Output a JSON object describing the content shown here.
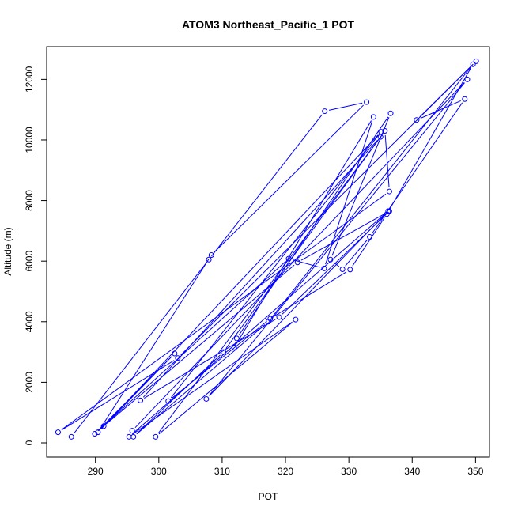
{
  "chart_data": {
    "type": "scatter",
    "title": "ATOM3 Northeast_Pacific_1 POT",
    "xlabel": "POT",
    "ylabel": "Altitude (m)",
    "xlim": [
      282.3,
      352.2
    ],
    "ylim": [
      -470,
      13080
    ],
    "x_ticks": [
      290,
      300,
      310,
      320,
      330,
      340,
      350
    ],
    "y_ticks": [
      0,
      2000,
      4000,
      6000,
      8000,
      10000,
      12000
    ],
    "x_tick_labels": [
      "290",
      "300",
      "310",
      "320",
      "330",
      "340",
      "350"
    ],
    "y_tick_labels": [
      "0",
      "2000",
      "4000",
      "6000",
      "8000",
      "10000",
      "12000"
    ],
    "grid": false,
    "legend": "none",
    "series_color": "#0000ff",
    "marker": "open-circle",
    "connected": true,
    "series": [
      {
        "points": [
          [
            286.2,
            200
          ],
          [
            307.9,
            6050
          ],
          [
            326.2,
            10950
          ],
          [
            332.8,
            11250
          ],
          [
            308.3,
            6200
          ],
          [
            290.4,
            350
          ],
          [
            302.5,
            2950
          ],
          [
            289.9,
            300
          ],
          [
            320.5,
            6080
          ],
          [
            326.1,
            5760
          ],
          [
            333.9,
            10760
          ],
          [
            311.9,
            3150
          ],
          [
            312.3,
            3450
          ],
          [
            336.6,
            10880
          ],
          [
            327.1,
            6050
          ],
          [
            329.0,
            5730
          ],
          [
            333.3,
            6800
          ],
          [
            348.3,
            11350
          ],
          [
            340.7,
            10660
          ],
          [
            350.1,
            12600
          ],
          [
            303.0,
            2800
          ],
          [
            284.1,
            350
          ],
          [
            336.4,
            8300
          ],
          [
            335.7,
            10300
          ],
          [
            310.2,
            3000
          ],
          [
            296.0,
            200
          ],
          [
            317.3,
            4000
          ],
          [
            349.6,
            12500
          ],
          [
            336.0,
            7550
          ],
          [
            330.2,
            5720
          ],
          [
            317.6,
            4100
          ],
          [
            301.5,
            1380
          ],
          [
            335.1,
            10270
          ],
          [
            291.3,
            550
          ],
          [
            321.9,
            5960
          ],
          [
            336.4,
            7650
          ],
          [
            319.0,
            4150
          ],
          [
            297.1,
            1400
          ],
          [
            335.0,
            10100
          ],
          [
            299.5,
            200
          ],
          [
            321.6,
            4070
          ],
          [
            295.3,
            200
          ],
          [
            336.2,
            7650
          ],
          [
            307.5,
            1450
          ],
          [
            348.7,
            12000
          ],
          [
            295.8,
            400
          ]
        ]
      }
    ]
  }
}
